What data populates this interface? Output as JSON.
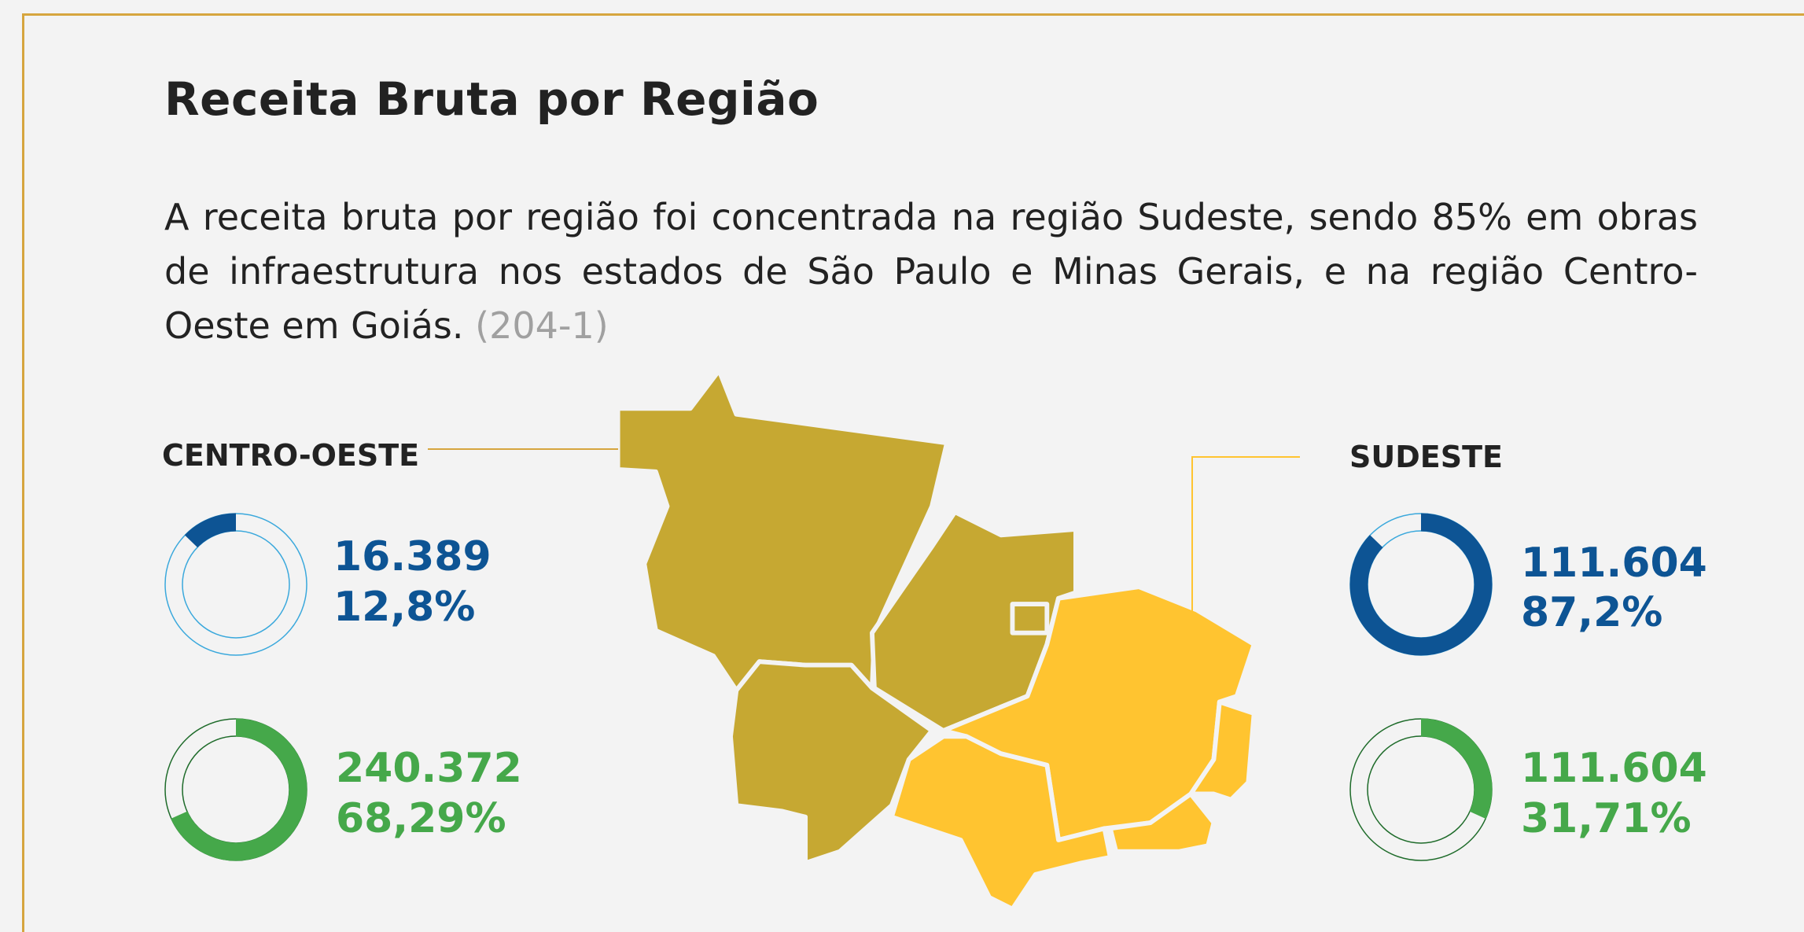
{
  "title": "Receita Bruta por Região",
  "description": "A receita bruta por região foi concentrada na região Sudeste, sendo 85% em obras de infraestrutura nos estados de São Paulo e Minas Gerais, e na região Centro-Oeste em Goiás.",
  "reference": "(204-1)",
  "regions": [
    {
      "name": "CENTRO-OESTE",
      "metrics": [
        {
          "amount": "16.389",
          "share": 12.8,
          "share_label": "12,8%"
        },
        {
          "amount": "240.372",
          "share": 68.29,
          "share_label": "68,29%"
        }
      ]
    },
    {
      "name": "SUDESTE",
      "metrics": [
        {
          "amount": "111.604",
          "share": 87.2,
          "share_label": "87,2%"
        },
        {
          "amount": "111.604",
          "share": 31.71,
          "share_label": "31,71%"
        }
      ]
    }
  ]
}
